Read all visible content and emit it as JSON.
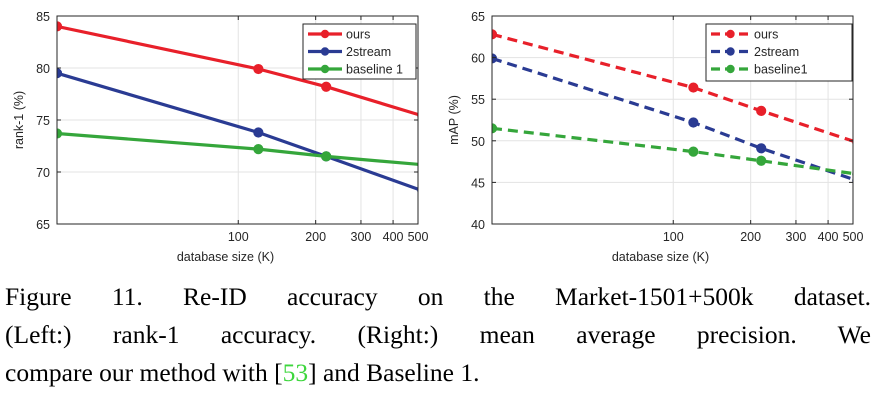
{
  "chart_data": [
    {
      "type": "line",
      "xscale": "log",
      "xlim": [
        19.732,
        500
      ],
      "ylim": [
        65,
        85
      ],
      "xticks": [
        100,
        200,
        300,
        400,
        500
      ],
      "xticklabels": [
        "100",
        "200",
        "300",
        "400",
        "500"
      ],
      "yticks": [
        65,
        70,
        75,
        80,
        85
      ],
      "yticklabels": [
        "65",
        "70",
        "75",
        "80",
        "85"
      ],
      "xlabel": "database size (K)",
      "ylabel": "rank-1 (%)",
      "grid": true,
      "legend_position": "top-right",
      "series": [
        {
          "name": "ours",
          "color": "#e8202a",
          "dashed": false,
          "x": [
            19.732,
            119.732,
            219.732,
            519.732
          ],
          "y": [
            84.0,
            79.9,
            78.2,
            75.4
          ]
        },
        {
          "name": "2stream",
          "color": "#2a3b93",
          "dashed": false,
          "x": [
            19.732,
            119.732,
            219.732,
            519.732
          ],
          "y": [
            79.5,
            73.8,
            71.5,
            68.2
          ]
        },
        {
          "name": "baseline 1",
          "color": "#35a63b",
          "dashed": false,
          "x": [
            19.732,
            119.732,
            219.732,
            519.732
          ],
          "y": [
            73.7,
            72.2,
            71.5,
            70.7
          ]
        }
      ]
    },
    {
      "type": "line",
      "xscale": "log",
      "xlim": [
        19.732,
        500
      ],
      "ylim": [
        40,
        65
      ],
      "xticks": [
        100,
        200,
        300,
        400,
        500
      ],
      "xticklabels": [
        "100",
        "200",
        "300",
        "400",
        "500"
      ],
      "yticks": [
        40,
        45,
        50,
        55,
        60,
        65
      ],
      "yticklabels": [
        "40",
        "45",
        "50",
        "55",
        "60",
        "65"
      ],
      "xlabel": "database size (K)",
      "ylabel": "mAP (%)",
      "grid": true,
      "legend_position": "top-right",
      "series": [
        {
          "name": "ours",
          "color": "#e8202a",
          "dashed": true,
          "x": [
            19.732,
            119.732,
            219.732,
            519.732
          ],
          "y": [
            62.8,
            56.4,
            53.6,
            49.8
          ]
        },
        {
          "name": "2stream",
          "color": "#2a3b93",
          "dashed": true,
          "x": [
            19.732,
            119.732,
            219.732,
            519.732
          ],
          "y": [
            59.9,
            52.2,
            49.1,
            45.2
          ]
        },
        {
          "name": "baseline1",
          "color": "#35a63b",
          "dashed": true,
          "x": [
            19.732,
            119.732,
            219.732,
            519.732
          ],
          "y": [
            51.5,
            48.7,
            47.6,
            46.0
          ]
        }
      ]
    }
  ],
  "caption": {
    "line1": "Figure 11. Re-ID accuracy on the Market-1501+500k dataset.",
    "line2": "(Left:) rank-1 accuracy. (Right:) mean average precision. We",
    "line3_pre": "compare our method with [",
    "line3_ref": "53",
    "line3_post": "] and Baseline 1."
  }
}
